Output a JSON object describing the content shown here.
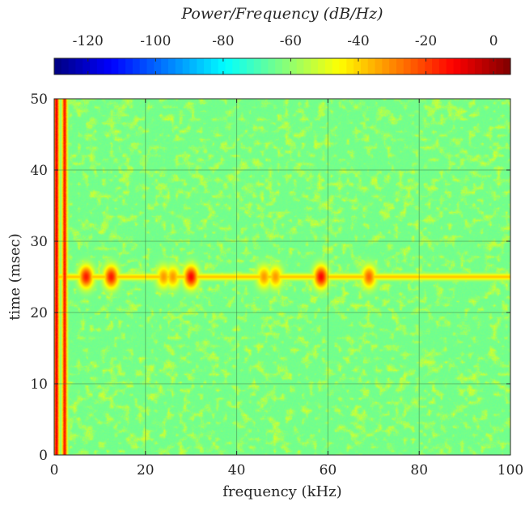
{
  "chart_data": {
    "type": "heatmap",
    "title": "",
    "xlabel": "frequency (kHz)",
    "ylabel": "time (msec)",
    "xlim": [
      0,
      100
    ],
    "ylim": [
      0,
      50
    ],
    "x_ticks": [
      "0",
      "20",
      "40",
      "60",
      "80",
      "100"
    ],
    "y_ticks": [
      "0",
      "10",
      "20",
      "30",
      "40",
      "50"
    ],
    "grid": true,
    "colorbar": {
      "label": "Power/Frequency (dB/Hz)",
      "position": "top",
      "range": [
        -130,
        5
      ],
      "ticks": [
        "-120",
        "-100",
        "-80",
        "-60",
        "-40",
        "-20",
        "0"
      ],
      "colormap": "jet"
    },
    "background_level_db": -65,
    "ridges": [
      {
        "feature": "vertical band",
        "x_khz": 0.5,
        "time_range_ms": [
          0,
          50
        ],
        "level_db": -10
      },
      {
        "feature": "vertical band",
        "x_khz": 2.3,
        "time_range_ms": [
          0,
          50
        ],
        "level_db": -15
      },
      {
        "feature": "horizontal line",
        "y_ms": 25,
        "x_range_khz": [
          0,
          100
        ],
        "level_db": -38
      }
    ],
    "blobs": [
      {
        "x_khz": 7,
        "y_ms": 25,
        "level_db": -15
      },
      {
        "x_khz": 12.5,
        "y_ms": 25,
        "level_db": -15
      },
      {
        "x_khz": 30,
        "y_ms": 25,
        "level_db": -12
      },
      {
        "x_khz": 58.5,
        "y_ms": 25,
        "level_db": -12
      },
      {
        "x_khz": 69,
        "y_ms": 25,
        "level_db": -25
      },
      {
        "x_khz": 46,
        "y_ms": 25,
        "level_db": -32
      },
      {
        "x_khz": 48.5,
        "y_ms": 25,
        "level_db": -32
      },
      {
        "x_khz": 24,
        "y_ms": 25,
        "level_db": -32
      },
      {
        "x_khz": 26,
        "y_ms": 25,
        "level_db": -32
      }
    ]
  }
}
